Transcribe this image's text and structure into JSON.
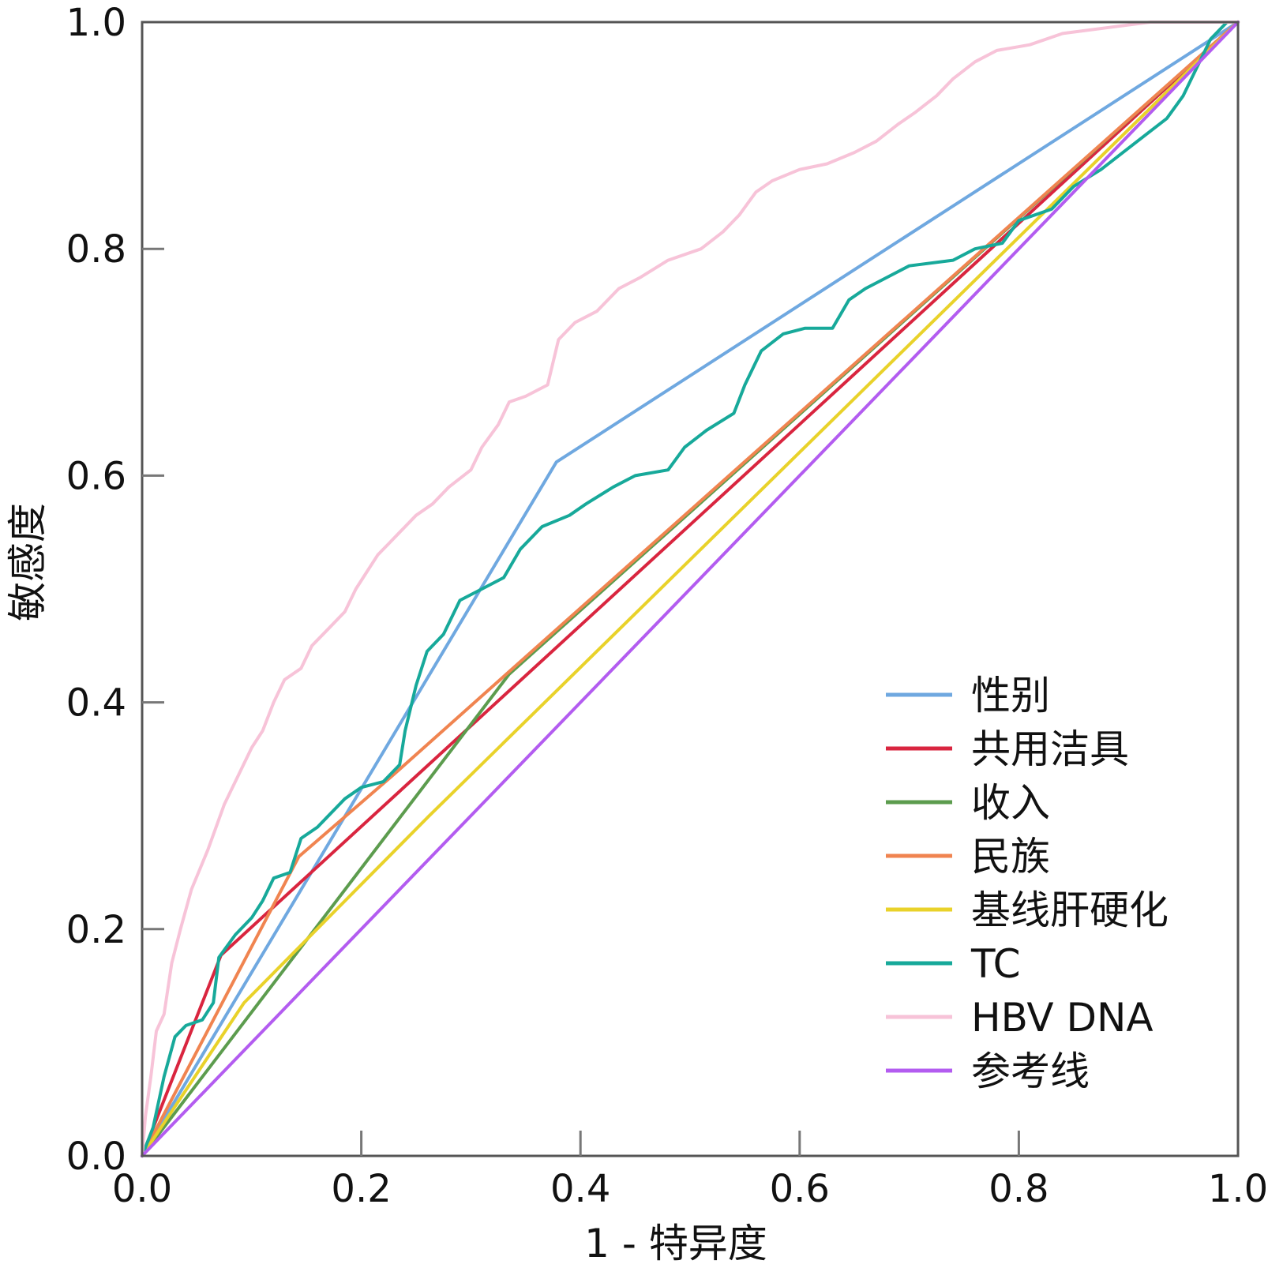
{
  "chart_data": {
    "type": "line",
    "title": "",
    "xlabel": "1 - 特异度",
    "ylabel": "敏感度",
    "xlim": [
      0,
      1
    ],
    "ylim": [
      0,
      1
    ],
    "xticks": [
      "0.0",
      "0.2",
      "0.4",
      "0.6",
      "0.8",
      "1.0"
    ],
    "yticks": [
      "0.0",
      "0.2",
      "0.4",
      "0.6",
      "0.8",
      "1.0"
    ],
    "grid": false,
    "legend_position": "bottom-right",
    "series": [
      {
        "name": "性别",
        "color": "#6fa8e0",
        "points": [
          [
            0,
            0
          ],
          [
            0.378,
            0.612
          ],
          [
            1,
            1
          ]
        ]
      },
      {
        "name": "共用洁具",
        "color": "#d9253f",
        "points": [
          [
            0,
            0
          ],
          [
            0.072,
            0.177
          ],
          [
            1,
            1
          ]
        ]
      },
      {
        "name": "收入",
        "color": "#5c9c4e",
        "points": [
          [
            0,
            0
          ],
          [
            0.335,
            0.425
          ],
          [
            1,
            1
          ]
        ]
      },
      {
        "name": "民族",
        "color": "#f08450",
        "points": [
          [
            0,
            0
          ],
          [
            0.143,
            0.264
          ],
          [
            0.228,
            0.335
          ],
          [
            1,
            1
          ]
        ]
      },
      {
        "name": "基线肝硬化",
        "color": "#e9d22a",
        "points": [
          [
            0,
            0
          ],
          [
            0.093,
            0.135
          ],
          [
            0.262,
            0.3
          ],
          [
            1,
            1
          ]
        ]
      },
      {
        "name": "TC",
        "color": "#17a99a",
        "points": [
          [
            0,
            0
          ],
          [
            0.01,
            0.025
          ],
          [
            0.02,
            0.07
          ],
          [
            0.03,
            0.105
          ],
          [
            0.04,
            0.115
          ],
          [
            0.055,
            0.12
          ],
          [
            0.065,
            0.135
          ],
          [
            0.07,
            0.175
          ],
          [
            0.085,
            0.195
          ],
          [
            0.1,
            0.21
          ],
          [
            0.11,
            0.225
          ],
          [
            0.12,
            0.245
          ],
          [
            0.135,
            0.25
          ],
          [
            0.145,
            0.28
          ],
          [
            0.16,
            0.29
          ],
          [
            0.17,
            0.3
          ],
          [
            0.185,
            0.315
          ],
          [
            0.2,
            0.325
          ],
          [
            0.22,
            0.33
          ],
          [
            0.235,
            0.345
          ],
          [
            0.24,
            0.375
          ],
          [
            0.25,
            0.415
          ],
          [
            0.26,
            0.445
          ],
          [
            0.275,
            0.46
          ],
          [
            0.29,
            0.49
          ],
          [
            0.31,
            0.5
          ],
          [
            0.33,
            0.51
          ],
          [
            0.345,
            0.535
          ],
          [
            0.365,
            0.555
          ],
          [
            0.39,
            0.565
          ],
          [
            0.405,
            0.575
          ],
          [
            0.43,
            0.59
          ],
          [
            0.45,
            0.6
          ],
          [
            0.48,
            0.605
          ],
          [
            0.495,
            0.625
          ],
          [
            0.515,
            0.64
          ],
          [
            0.54,
            0.655
          ],
          [
            0.55,
            0.68
          ],
          [
            0.565,
            0.71
          ],
          [
            0.585,
            0.725
          ],
          [
            0.605,
            0.73
          ],
          [
            0.63,
            0.73
          ],
          [
            0.645,
            0.755
          ],
          [
            0.66,
            0.765
          ],
          [
            0.68,
            0.775
          ],
          [
            0.7,
            0.785
          ],
          [
            0.74,
            0.79
          ],
          [
            0.76,
            0.8
          ],
          [
            0.785,
            0.805
          ],
          [
            0.8,
            0.825
          ],
          [
            0.83,
            0.835
          ],
          [
            0.85,
            0.855
          ],
          [
            0.875,
            0.87
          ],
          [
            0.895,
            0.885
          ],
          [
            0.915,
            0.9
          ],
          [
            0.935,
            0.915
          ],
          [
            0.95,
            0.935
          ],
          [
            0.965,
            0.965
          ],
          [
            0.975,
            0.985
          ],
          [
            0.99,
            1
          ],
          [
            1,
            1
          ]
        ]
      },
      {
        "name": "HBV DNA",
        "color": "#f7c3d8",
        "points": [
          [
            0,
            0
          ],
          [
            0.003,
            0.035
          ],
          [
            0.008,
            0.07
          ],
          [
            0.013,
            0.11
          ],
          [
            0.02,
            0.125
          ],
          [
            0.027,
            0.17
          ],
          [
            0.035,
            0.2
          ],
          [
            0.045,
            0.235
          ],
          [
            0.06,
            0.27
          ],
          [
            0.075,
            0.31
          ],
          [
            0.09,
            0.34
          ],
          [
            0.1,
            0.36
          ],
          [
            0.11,
            0.375
          ],
          [
            0.12,
            0.4
          ],
          [
            0.13,
            0.42
          ],
          [
            0.145,
            0.43
          ],
          [
            0.155,
            0.45
          ],
          [
            0.17,
            0.465
          ],
          [
            0.185,
            0.48
          ],
          [
            0.195,
            0.5
          ],
          [
            0.205,
            0.515
          ],
          [
            0.215,
            0.53
          ],
          [
            0.225,
            0.54
          ],
          [
            0.235,
            0.55
          ],
          [
            0.25,
            0.565
          ],
          [
            0.265,
            0.575
          ],
          [
            0.28,
            0.59
          ],
          [
            0.3,
            0.605
          ],
          [
            0.31,
            0.625
          ],
          [
            0.325,
            0.645
          ],
          [
            0.335,
            0.665
          ],
          [
            0.35,
            0.67
          ],
          [
            0.37,
            0.68
          ],
          [
            0.38,
            0.72
          ],
          [
            0.395,
            0.735
          ],
          [
            0.415,
            0.745
          ],
          [
            0.435,
            0.765
          ],
          [
            0.455,
            0.775
          ],
          [
            0.48,
            0.79
          ],
          [
            0.51,
            0.8
          ],
          [
            0.53,
            0.815
          ],
          [
            0.545,
            0.83
          ],
          [
            0.56,
            0.85
          ],
          [
            0.575,
            0.86
          ],
          [
            0.6,
            0.87
          ],
          [
            0.625,
            0.875
          ],
          [
            0.65,
            0.885
          ],
          [
            0.67,
            0.895
          ],
          [
            0.69,
            0.91
          ],
          [
            0.705,
            0.92
          ],
          [
            0.725,
            0.935
          ],
          [
            0.74,
            0.95
          ],
          [
            0.76,
            0.965
          ],
          [
            0.78,
            0.975
          ],
          [
            0.81,
            0.98
          ],
          [
            0.84,
            0.99
          ],
          [
            0.88,
            0.995
          ],
          [
            0.92,
            1
          ],
          [
            1,
            1
          ]
        ]
      },
      {
        "name": "参考线",
        "color": "#b35cf0",
        "points": [
          [
            0,
            0
          ],
          [
            1,
            1
          ]
        ]
      }
    ]
  }
}
